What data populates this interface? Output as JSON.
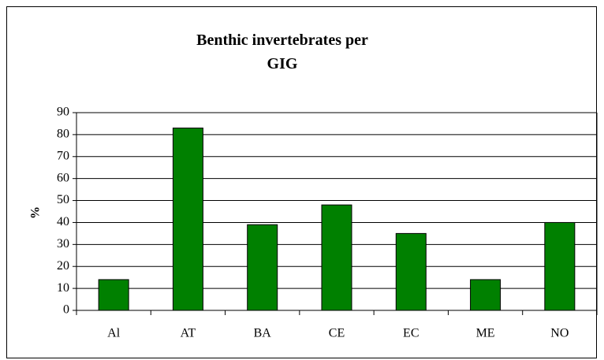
{
  "chart_data": {
    "type": "bar",
    "title": "Benthic invertebrates per GIG",
    "y_label": "%",
    "categories": [
      "Al",
      "AT",
      "BA",
      "CE",
      "EC",
      "ME",
      "NO"
    ],
    "values": [
      14,
      83,
      39,
      48,
      35,
      14,
      40
    ],
    "color": "#008000",
    "ylim": [
      0,
      90
    ],
    "yticks": [
      0,
      10,
      20,
      30,
      40,
      50,
      60,
      70,
      80,
      90
    ],
    "grid": true
  }
}
